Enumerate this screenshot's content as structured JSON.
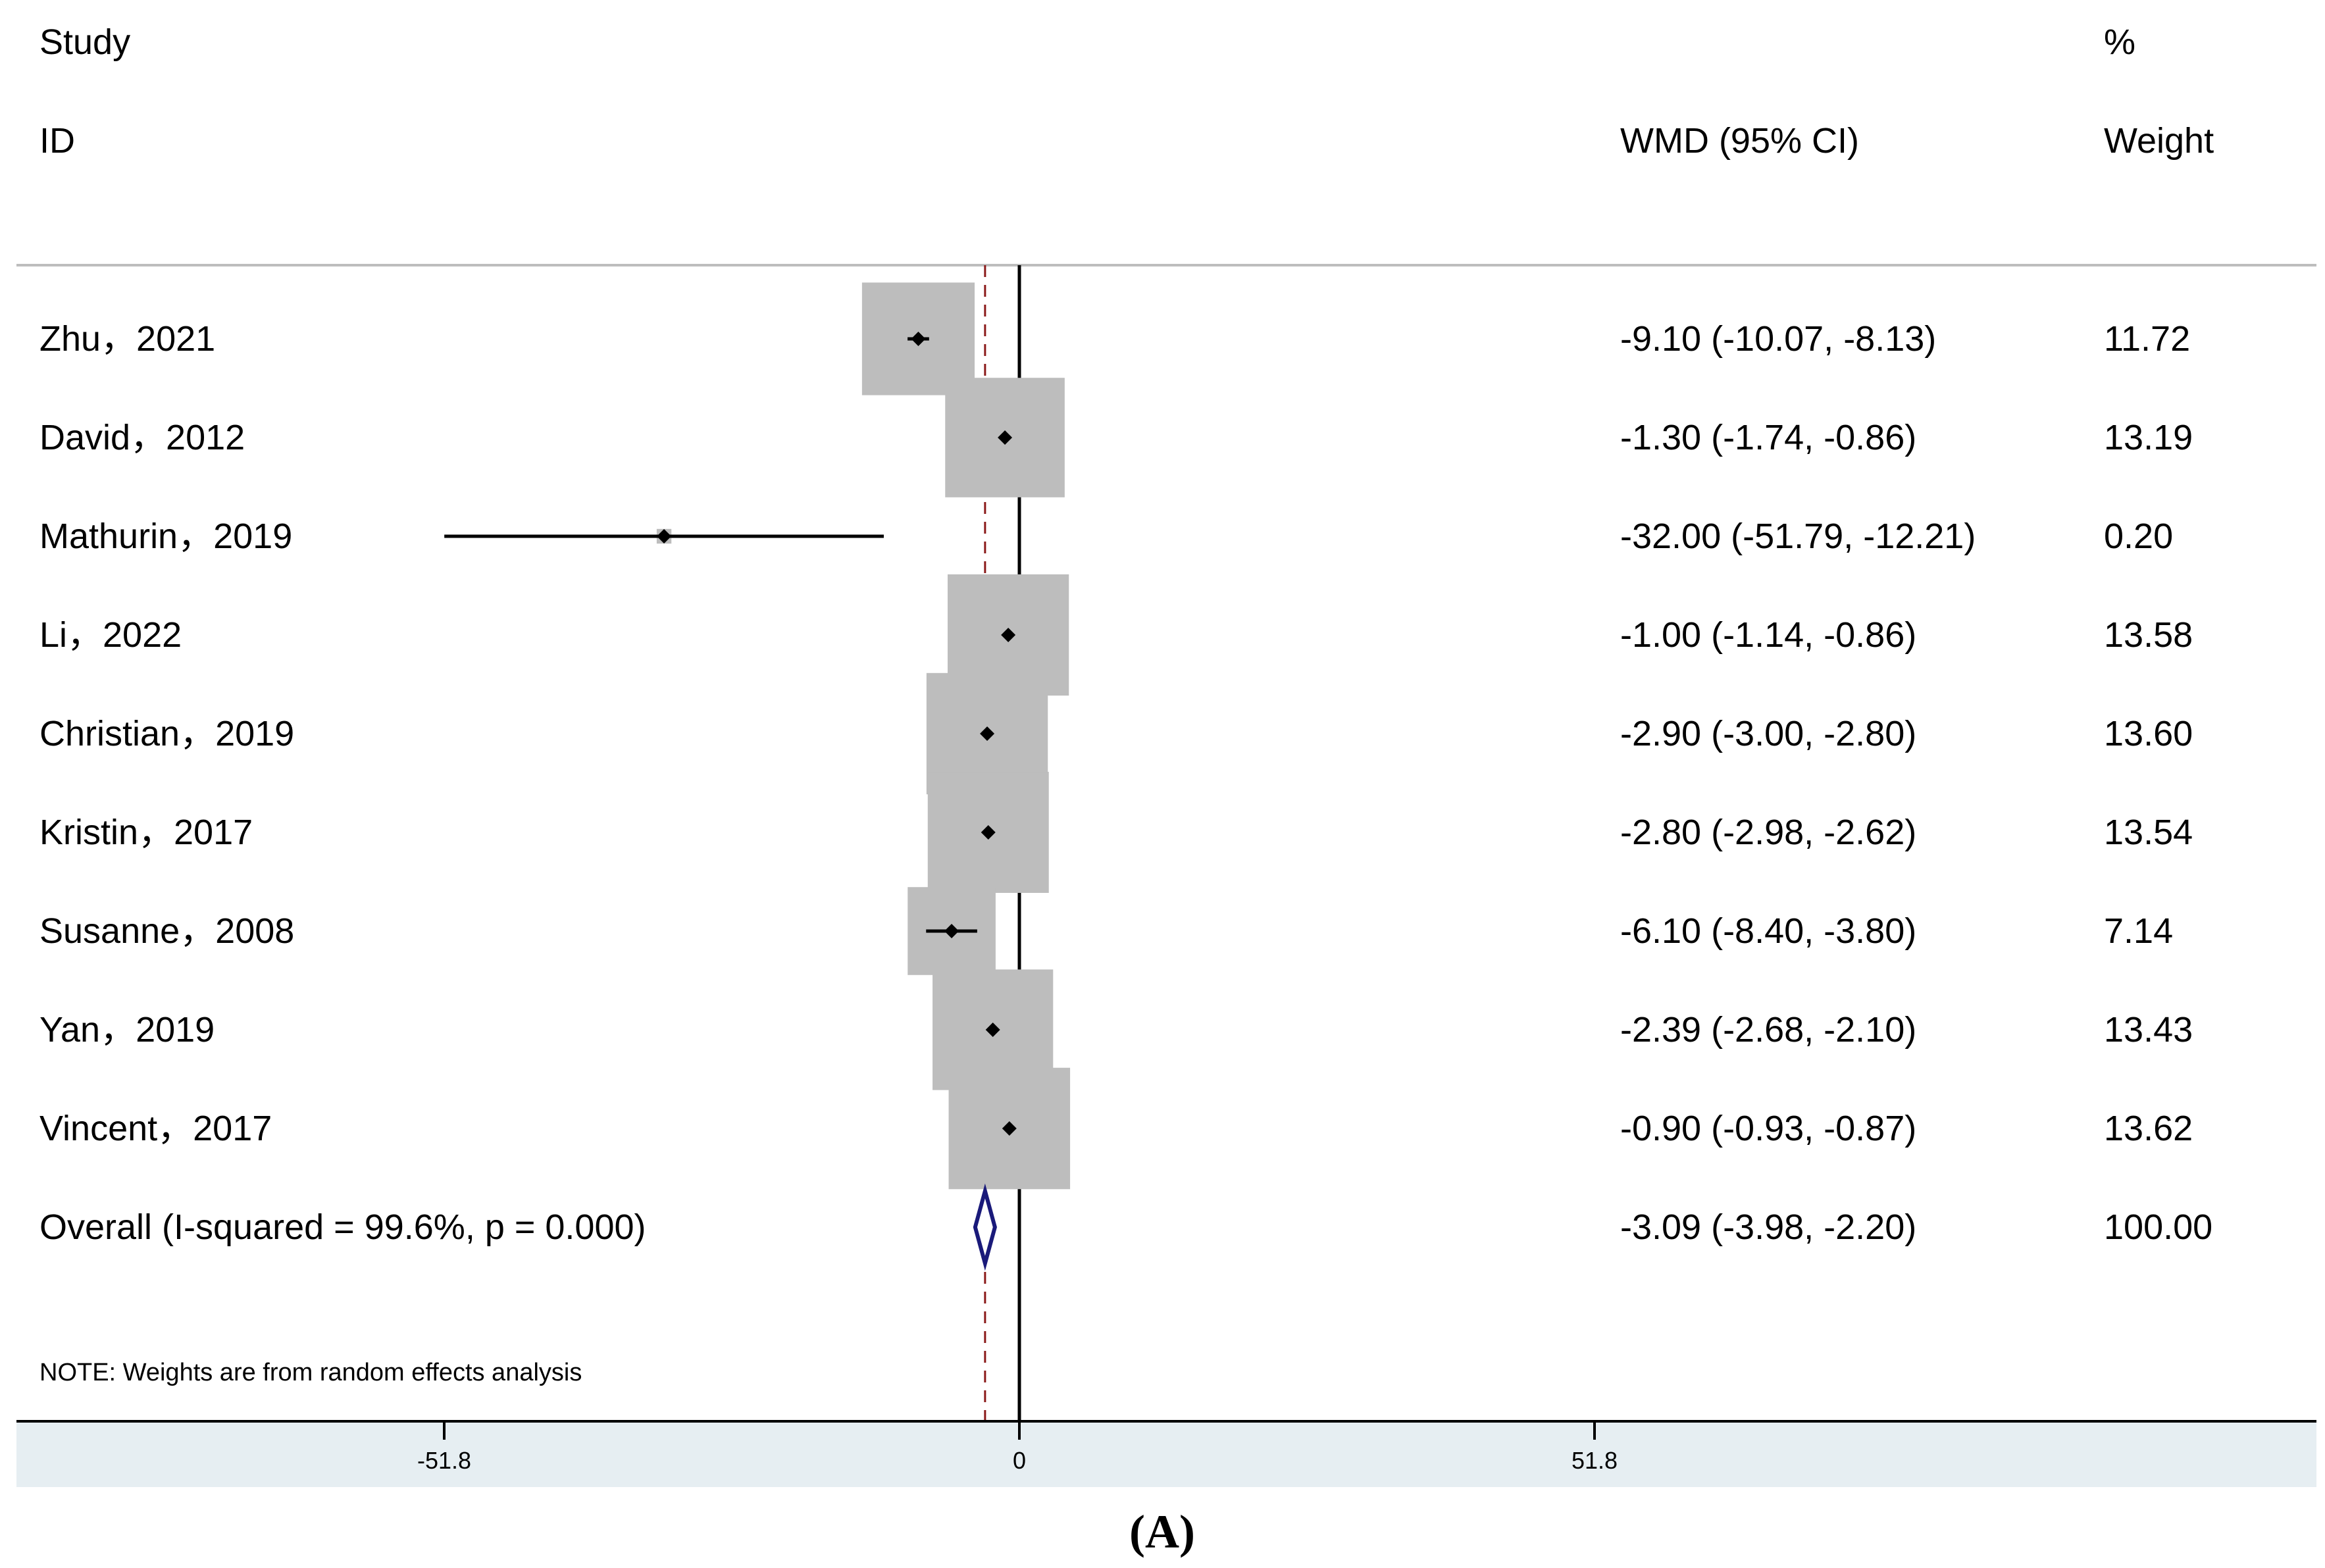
{
  "chart_data": {
    "type": "forest",
    "headers": {
      "study_line1": "Study",
      "study_line2": "ID",
      "effect": "WMD (95% CI)",
      "weight_line1": "%",
      "weight_line2": "Weight"
    },
    "studies": [
      {
        "id": "Zhu，2021",
        "wmd": -9.1,
        "lo": -10.07,
        "hi": -8.13,
        "weight": 11.72,
        "ci_text": "-9.10 (-10.07, -8.13)",
        "weight_text": "11.72"
      },
      {
        "id": "David，2012",
        "wmd": -1.3,
        "lo": -1.74,
        "hi": -0.86,
        "weight": 13.19,
        "ci_text": "-1.30 (-1.74, -0.86)",
        "weight_text": "13.19"
      },
      {
        "id": "Mathurin，2019",
        "wmd": -32.0,
        "lo": -51.79,
        "hi": -12.21,
        "weight": 0.2,
        "ci_text": "-32.00 (-51.79, -12.21)",
        "weight_text": "0.20"
      },
      {
        "id": "Li，2022",
        "wmd": -1.0,
        "lo": -1.14,
        "hi": -0.86,
        "weight": 13.58,
        "ci_text": "-1.00 (-1.14, -0.86)",
        "weight_text": "13.58"
      },
      {
        "id": "Christian，2019",
        "wmd": -2.9,
        "lo": -3.0,
        "hi": -2.8,
        "weight": 13.6,
        "ci_text": "-2.90 (-3.00, -2.80)",
        "weight_text": "13.60"
      },
      {
        "id": "Kristin，2017",
        "wmd": -2.8,
        "lo": -2.98,
        "hi": -2.62,
        "weight": 13.54,
        "ci_text": "-2.80 (-2.98, -2.62)",
        "weight_text": "13.54"
      },
      {
        "id": "Susanne，2008",
        "wmd": -6.1,
        "lo": -8.4,
        "hi": -3.8,
        "weight": 7.14,
        "ci_text": "-6.10 (-8.40, -3.80)",
        "weight_text": "7.14"
      },
      {
        "id": "Yan，2019",
        "wmd": -2.39,
        "lo": -2.68,
        "hi": -2.1,
        "weight": 13.43,
        "ci_text": "-2.39 (-2.68, -2.10)",
        "weight_text": "13.43"
      },
      {
        "id": "Vincent，2017",
        "wmd": -0.9,
        "lo": -0.93,
        "hi": -0.87,
        "weight": 13.62,
        "ci_text": "-0.90 (-0.93, -0.87)",
        "weight_text": "13.62"
      }
    ],
    "overall": {
      "label": "Overall  (I-squared = 99.6%, p = 0.000)",
      "wmd": -3.09,
      "lo": -3.98,
      "hi": -2.2,
      "weight": 100.0,
      "ci_text": "-3.09 (-3.98, -2.20)",
      "weight_text": "100.00"
    },
    "note": "NOTE: Weights are from random effects analysis",
    "x_ticks": [
      {
        "value": -51.8,
        "label": "-51.8"
      },
      {
        "value": 0,
        "label": "0"
      },
      {
        "value": 51.8,
        "label": "51.8"
      }
    ],
    "xlim": [
      -90,
      51.8
    ],
    "panel_label": "(A)",
    "colors": {
      "box": "#bdbdbd",
      "point": "#000000",
      "diamond": "#1a1a7a",
      "overall_line": "#8b1a1a",
      "axis_band": "#e6eef2",
      "header_rule": "#bdbdbd"
    }
  }
}
